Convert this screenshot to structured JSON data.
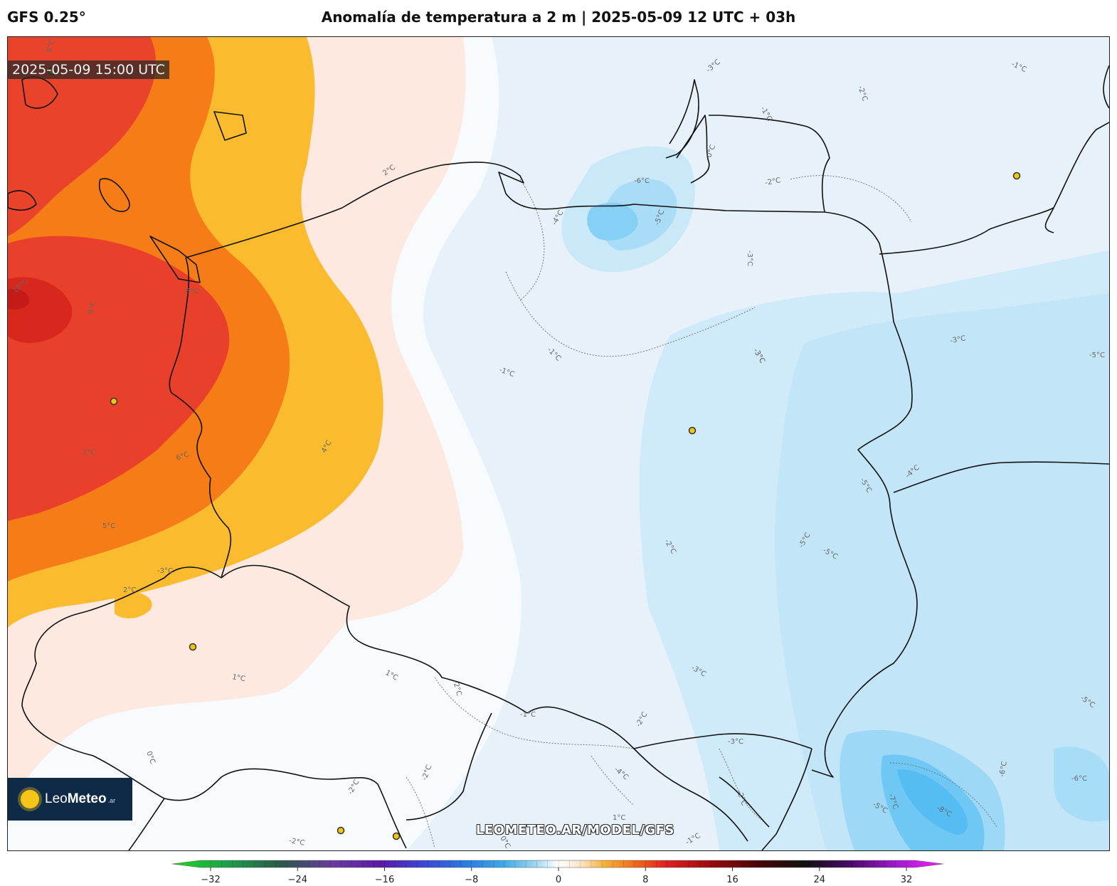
{
  "header": {
    "model": "GFS 0.25°",
    "title": "Anomalía de temperatura a 2 m | 2025-05-09 12 UTC + 03h"
  },
  "map": {
    "valid_time": "2025-05-09 15:00 UTC",
    "watermark": "LEOMETEO.AR/MODEL/GFS",
    "contour_labels": [
      "6°C",
      "2°C",
      "-1°C",
      "-6°C",
      "-5°C",
      "-4°C",
      "-3°C",
      "-2°C",
      "-1°C",
      "0°C",
      "-2°C",
      "-3°C",
      "-3°C",
      "-1°C",
      "-5°C",
      "4°C",
      "6°C",
      "7°C",
      "5°C",
      "-3°C",
      "1°C",
      "1°C",
      "-2°C",
      "2°C",
      "0°C",
      "-1°C",
      "-2°C",
      "-3°C",
      "-4°C",
      "-2°C",
      "-3°C",
      "-5°C",
      "-5°C",
      "-5°C",
      "-7°C",
      "-8°C",
      "-6°C",
      "-6°C",
      "-5°C",
      "-5°C",
      "-4°C",
      "-2°C",
      "-1°C",
      "0°C",
      "-2°C",
      "-2°C",
      "1°C",
      "-2°C",
      "-1°C",
      "9°C",
      "8°C",
      "10°C",
      "-3°C",
      "-3°C"
    ]
  },
  "logo": {
    "brand_light": "Leo",
    "brand_bold": "Meteo",
    "suffix": ".ar"
  },
  "colorbar": {
    "ticks": [
      "−32",
      "−24",
      "−16",
      "−8",
      "0",
      "8",
      "16",
      "24",
      "32"
    ],
    "range": [
      -32,
      32
    ],
    "colors": {
      "strong_warm": "#e83a24",
      "warm": "#f57d16",
      "mild_warm": "#fbb92a",
      "light_warm": "#fde7dc",
      "neutral": "#fbfbfb",
      "light_cold": "#e3eff9",
      "cold": "#c4e6f7",
      "strong_cold": "#5ec3f4"
    }
  }
}
